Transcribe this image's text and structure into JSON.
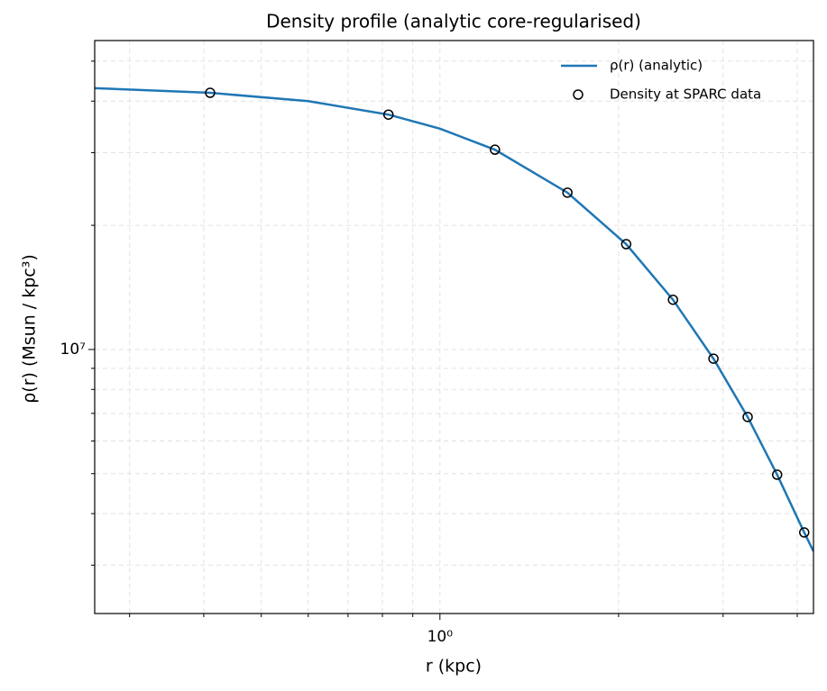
{
  "chart_data": {
    "type": "line",
    "title": "Density profile (analytic core-regularised)",
    "xlabel": "r (kpc)",
    "ylabel": "ρ(r) (Msun / kpc³)",
    "xscale": "log",
    "yscale": "log",
    "xlim": [
      0.262,
      4.26
    ],
    "ylim": [
      2290000,
      56100000
    ],
    "xticks": [
      {
        "value": 1,
        "label": "10⁰"
      }
    ],
    "xminorticks": [
      0.3,
      0.4,
      0.5,
      0.6,
      0.7,
      0.8,
      0.9,
      2,
      3,
      4
    ],
    "yticks": [
      {
        "value": 10000000,
        "label": "10⁷"
      }
    ],
    "yminorticks": [
      3000000,
      4000000,
      5000000,
      6000000,
      7000000,
      8000000,
      9000000,
      20000000,
      30000000,
      40000000,
      50000000
    ],
    "grid": true,
    "legend": "upper right",
    "series": [
      {
        "name": "ρ(r) (analytic)",
        "color": "#1f77b4",
        "style": "line",
        "x": [
          0.262,
          0.41,
          0.6,
          0.819,
          1.0,
          1.238,
          1.64,
          2.06,
          2.47,
          2.89,
          3.3,
          3.7,
          4.11,
          4.26
        ],
        "values": [
          43000000,
          41900000,
          40000000,
          37100000,
          34300000,
          30500000,
          24000000,
          18000000,
          13200000,
          9500000,
          6860000,
          4970000,
          3600000,
          3240000
        ]
      },
      {
        "name": "Density at SPARC data",
        "color": "#000000",
        "style": "marker",
        "x": [
          0.41,
          0.819,
          1.238,
          1.64,
          2.06,
          2.47,
          2.89,
          3.3,
          3.7,
          4.11
        ],
        "values": [
          41900000,
          37100000,
          30500000,
          24000000,
          18000000,
          13200000,
          9500000,
          6860000,
          4970000,
          3600000
        ]
      }
    ]
  }
}
